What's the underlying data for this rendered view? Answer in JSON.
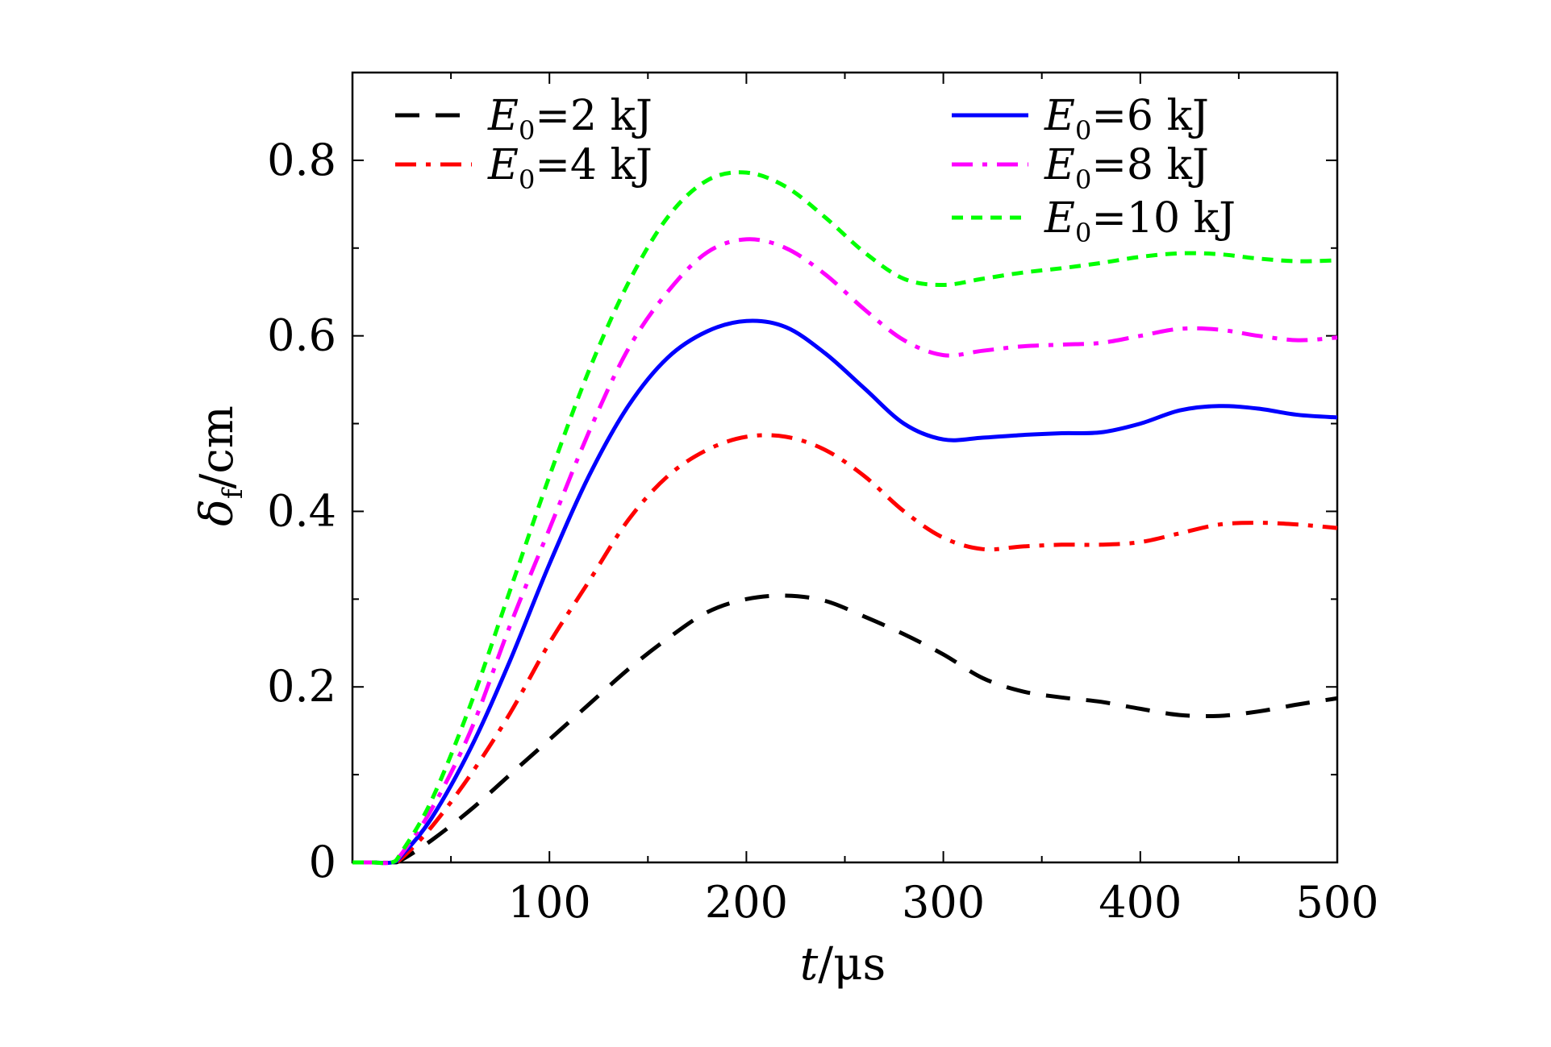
{
  "chart_data": {
    "type": "line",
    "xlabel": {
      "var": "t",
      "unit": "/μs"
    },
    "ylabel": {
      "var": "δ",
      "sub": "f",
      "unit": "/cm"
    },
    "xlim": [
      0,
      500
    ],
    "ylim": [
      0,
      0.9
    ],
    "xticks": [
      100,
      200,
      300,
      400,
      500
    ],
    "yticks": [
      0,
      0.2,
      0.4,
      0.6,
      0.8
    ],
    "ytick_labels": [
      "0",
      "0.2",
      "0.4",
      "0.6",
      "0.8"
    ],
    "grid": false,
    "legend_placement": "top",
    "series": [
      {
        "name": "E0=2 kJ",
        "label_var": "E",
        "label_sub": "0",
        "label_rest": "=2 kJ",
        "color": "#000000",
        "style": "dashed",
        "x": [
          0,
          10,
          20,
          25,
          40,
          60,
          80,
          100,
          120,
          140,
          160,
          180,
          200,
          220,
          240,
          260,
          280,
          300,
          320,
          340,
          360,
          380,
          400,
          420,
          440,
          460,
          480,
          500
        ],
        "y": [
          0,
          0,
          0,
          0.003,
          0.025,
          0.06,
          0.1,
          0.14,
          0.18,
          0.22,
          0.255,
          0.285,
          0.3,
          0.304,
          0.298,
          0.28,
          0.26,
          0.237,
          0.21,
          0.195,
          0.188,
          0.183,
          0.175,
          0.168,
          0.167,
          0.172,
          0.18,
          0.187
        ]
      },
      {
        "name": "E0=4 kJ",
        "label_var": "E",
        "label_sub": "0",
        "label_rest": "=4 kJ",
        "color": "#ff0000",
        "style": "dashdot",
        "x": [
          0,
          10,
          20,
          25,
          40,
          60,
          80,
          100,
          120,
          140,
          160,
          180,
          200,
          220,
          240,
          260,
          280,
          300,
          320,
          340,
          360,
          380,
          400,
          420,
          440,
          460,
          480,
          500
        ],
        "y": [
          0,
          0,
          0,
          0.005,
          0.04,
          0.1,
          0.17,
          0.25,
          0.32,
          0.39,
          0.44,
          0.47,
          0.485,
          0.485,
          0.47,
          0.44,
          0.4,
          0.37,
          0.357,
          0.36,
          0.362,
          0.362,
          0.365,
          0.375,
          0.385,
          0.387,
          0.385,
          0.381
        ]
      },
      {
        "name": "E0=6 kJ",
        "label_var": "E",
        "label_sub": "0",
        "label_rest": "=6 kJ",
        "color": "#0000ff",
        "style": "solid",
        "x": [
          0,
          10,
          20,
          25,
          40,
          60,
          80,
          100,
          120,
          140,
          160,
          180,
          200,
          220,
          240,
          260,
          280,
          300,
          320,
          340,
          360,
          380,
          400,
          420,
          440,
          460,
          480,
          500
        ],
        "y": [
          0,
          0,
          0,
          0.008,
          0.05,
          0.13,
          0.23,
          0.34,
          0.44,
          0.52,
          0.575,
          0.605,
          0.617,
          0.61,
          0.58,
          0.54,
          0.5,
          0.482,
          0.484,
          0.487,
          0.489,
          0.49,
          0.5,
          0.515,
          0.52,
          0.517,
          0.51,
          0.507
        ]
      },
      {
        "name": "E0=8 kJ",
        "label_var": "E",
        "label_sub": "0",
        "label_rest": "=8 kJ",
        "color": "#ff00ff",
        "style": "dashdot",
        "x": [
          0,
          10,
          20,
          25,
          40,
          60,
          80,
          100,
          120,
          140,
          160,
          180,
          200,
          220,
          240,
          260,
          280,
          300,
          320,
          340,
          360,
          380,
          400,
          420,
          440,
          460,
          480,
          500
        ],
        "y": [
          0,
          0,
          0,
          0.01,
          0.06,
          0.15,
          0.27,
          0.38,
          0.49,
          0.585,
          0.65,
          0.695,
          0.71,
          0.7,
          0.67,
          0.63,
          0.595,
          0.578,
          0.583,
          0.588,
          0.59,
          0.592,
          0.6,
          0.608,
          0.607,
          0.6,
          0.595,
          0.598
        ]
      },
      {
        "name": "E0=10 kJ",
        "label_var": "E",
        "label_sub": "0",
        "label_rest": "=10 kJ",
        "color": "#00ff00",
        "style": "dotted",
        "x": [
          0,
          10,
          20,
          25,
          40,
          60,
          80,
          100,
          120,
          140,
          160,
          180,
          200,
          220,
          240,
          260,
          280,
          300,
          320,
          340,
          360,
          380,
          400,
          420,
          440,
          460,
          480,
          500
        ],
        "y": [
          0,
          0,
          0,
          0.012,
          0.07,
          0.18,
          0.31,
          0.44,
          0.56,
          0.66,
          0.735,
          0.777,
          0.786,
          0.77,
          0.735,
          0.695,
          0.665,
          0.658,
          0.665,
          0.672,
          0.677,
          0.683,
          0.69,
          0.694,
          0.693,
          0.688,
          0.685,
          0.686
        ]
      }
    ]
  }
}
